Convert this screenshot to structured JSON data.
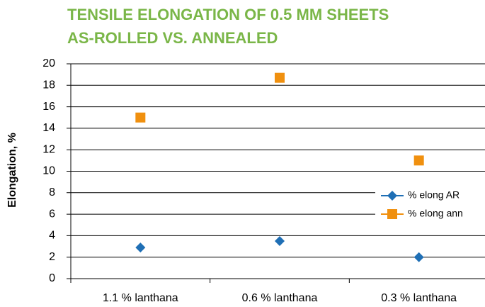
{
  "chart_data": {
    "type": "scatter",
    "title": [
      "TENSILE ELONGATION OF 0.5 MM SHEETS",
      "AS-ROLLED VS. ANNEALED"
    ],
    "y_label": "Elongation, %",
    "categories": [
      "1.1 % lanthana",
      "0.6 % lanthana",
      "0.3 % lanthana"
    ],
    "series": [
      {
        "name": "% elong AR",
        "color": "#1f6fb5",
        "marker": "diamond",
        "values": [
          2.9,
          3.5,
          2.0
        ]
      },
      {
        "name": "% elong ann",
        "color": "#f0900f",
        "marker": "square",
        "values": [
          15.0,
          18.7,
          11.0
        ]
      }
    ],
    "ylim": [
      0,
      20
    ],
    "yticks": [
      0,
      2,
      4,
      6,
      8,
      10,
      12,
      14,
      16,
      18,
      20
    ],
    "grid": true,
    "legend": "right"
  }
}
